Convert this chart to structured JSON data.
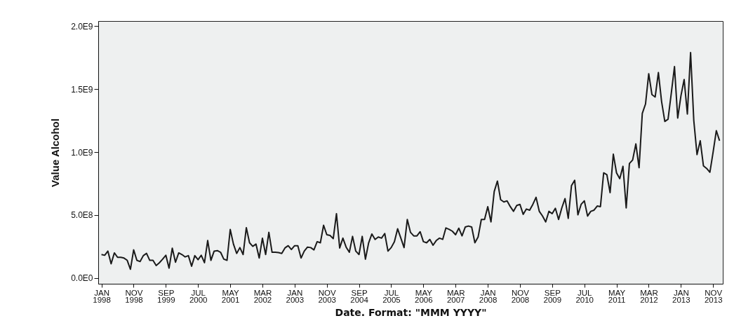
{
  "chart_data": {
    "type": "line",
    "xlabel": "Date.  Format: \"MMM YYYY\"",
    "ylabel": "Value Alcohol",
    "categories": [
      "JAN 1998",
      null,
      null,
      null,
      null,
      null,
      null,
      null,
      null,
      null,
      "NOV 1998",
      null,
      null,
      null,
      null,
      null,
      null,
      null,
      null,
      null,
      "SEP 1999",
      null,
      null,
      null,
      null,
      null,
      null,
      null,
      null,
      null,
      "JUL 2000",
      null,
      null,
      null,
      null,
      null,
      null,
      null,
      null,
      null,
      "MAY 2001",
      null,
      null,
      null,
      null,
      null,
      null,
      null,
      null,
      null,
      "MAR 2002",
      null,
      null,
      null,
      null,
      null,
      null,
      null,
      null,
      null,
      "JAN 2003",
      null,
      null,
      null,
      null,
      null,
      null,
      null,
      null,
      null,
      "NOV 2003",
      null,
      null,
      null,
      null,
      null,
      null,
      null,
      null,
      null,
      "SEP 2004",
      null,
      null,
      null,
      null,
      null,
      null,
      null,
      null,
      null,
      "JUL 2005",
      null,
      null,
      null,
      null,
      null,
      null,
      null,
      null,
      null,
      "MAY 2006",
      null,
      null,
      null,
      null,
      null,
      null,
      null,
      null,
      null,
      "MAR 2007",
      null,
      null,
      null,
      null,
      null,
      null,
      null,
      null,
      null,
      "JAN 2008",
      null,
      null,
      null,
      null,
      null,
      null,
      null,
      null,
      null,
      "NOV 2008",
      null,
      null,
      null,
      null,
      null,
      null,
      null,
      null,
      null,
      "SEP 2009",
      null,
      null,
      null,
      null,
      null,
      null,
      null,
      null,
      null,
      "JUL 2010",
      null,
      null,
      null,
      null,
      null,
      null,
      null,
      null,
      null,
      "MAY 2011",
      null,
      null,
      null,
      null,
      null,
      null,
      null,
      null,
      null,
      "MAR 2012",
      null,
      null,
      null,
      null,
      null,
      null,
      null,
      null,
      null,
      "JAN 2013",
      null,
      null,
      null,
      null,
      null,
      null,
      null,
      null,
      null,
      "NOV 2013",
      null,
      null
    ],
    "series": [
      {
        "color": "#1a1a1a",
        "values": [
          187000000.0,
          181000000.0,
          214000000.0,
          113000000.0,
          200000000.0,
          165000000.0,
          165000000.0,
          159000000.0,
          141000000.0,
          70000000.0,
          224000000.0,
          141000000.0,
          131000000.0,
          178000000.0,
          196000000.0,
          141000000.0,
          141000000.0,
          100000000.0,
          122000000.0,
          150000000.0,
          181000000.0,
          79000000.0,
          237000000.0,
          126000000.0,
          200000000.0,
          187000000.0,
          168000000.0,
          178000000.0,
          94000000.0,
          178000000.0,
          146000000.0,
          181000000.0,
          122000000.0,
          298000000.0,
          141000000.0,
          214000000.0,
          218000000.0,
          205000000.0,
          150000000.0,
          141000000.0,
          386000000.0,
          270000000.0,
          196000000.0,
          242000000.0,
          187000000.0,
          400000000.0,
          280000000.0,
          252000000.0,
          270000000.0,
          159000000.0,
          317000000.0,
          187000000.0,
          363000000.0,
          205000000.0,
          205000000.0,
          202000000.0,
          196000000.0,
          239000000.0,
          257000000.0,
          227000000.0,
          257000000.0,
          257000000.0,
          159000000.0,
          214000000.0,
          246000000.0,
          242000000.0,
          224000000.0,
          289000000.0,
          280000000.0,
          419000000.0,
          344000000.0,
          339000000.0,
          313000000.0,
          511000000.0,
          239000000.0,
          317000000.0,
          246000000.0,
          205000000.0,
          331000000.0,
          214000000.0,
          187000000.0,
          331000000.0,
          150000000.0,
          280000000.0,
          350000000.0,
          307000000.0,
          326000000.0,
          317000000.0,
          354000000.0,
          214000000.0,
          242000000.0,
          289000000.0,
          391000000.0,
          317000000.0,
          242000000.0,
          465000000.0,
          363000000.0,
          335000000.0,
          335000000.0,
          368000000.0,
          289000000.0,
          280000000.0,
          307000000.0,
          261000000.0,
          298000000.0,
          317000000.0,
          307000000.0,
          398000000.0,
          387000000.0,
          372000000.0,
          344000000.0,
          396000000.0,
          335000000.0,
          405000000.0,
          413000000.0,
          405000000.0,
          280000000.0,
          326000000.0,
          465000000.0,
          465000000.0,
          567000000.0,
          446000000.0,
          687000000.0,
          770000000.0,
          622000000.0,
          604000000.0,
          613000000.0,
          567000000.0,
          530000000.0,
          576000000.0,
          585000000.0,
          506000000.0,
          548000000.0,
          539000000.0,
          585000000.0,
          641000000.0,
          530000000.0,
          493000000.0,
          446000000.0,
          530000000.0,
          511000000.0,
          554000000.0,
          465000000.0,
          557000000.0,
          631000000.0,
          474000000.0,
          733000000.0,
          776000000.0,
          502000000.0,
          585000000.0,
          613000000.0,
          492000000.0,
          530000000.0,
          539000000.0,
          572000000.0,
          567000000.0,
          835000000.0,
          820000000.0,
          678000000.0,
          983000000.0,
          835000000.0,
          789000000.0,
          887000000.0,
          557000000.0,
          909000000.0,
          937000000.0,
          1065000000.0,
          876000000.0,
          1307000000.0,
          1381000000.0,
          1622000000.0,
          1456000000.0,
          1437000000.0,
          1631000000.0,
          1400000000.0,
          1243000000.0,
          1261000000.0,
          1465000000.0,
          1678000000.0,
          1270000000.0,
          1446000000.0,
          1576000000.0,
          1302000000.0,
          1790000000.0,
          1250000000.0,
          980000000.0,
          1090000000.0,
          890000000.0,
          870000000.0,
          840000000.0,
          1000000000.0,
          1170000000.0,
          1090000000.0
        ]
      }
    ],
    "ylim": [
      -45000000.0,
      2040000000.0
    ],
    "yticks": [
      {
        "value": 0,
        "label": "0.0E0"
      },
      {
        "value": 500000000.0,
        "label": "5.0E8"
      },
      {
        "value": 1000000000.0,
        "label": "1.0E9"
      },
      {
        "value": 1500000000.0,
        "label": "1.5E9"
      },
      {
        "value": 2000000000.0,
        "label": "2.0E9"
      }
    ],
    "marker": "none",
    "line_style": "solid"
  }
}
